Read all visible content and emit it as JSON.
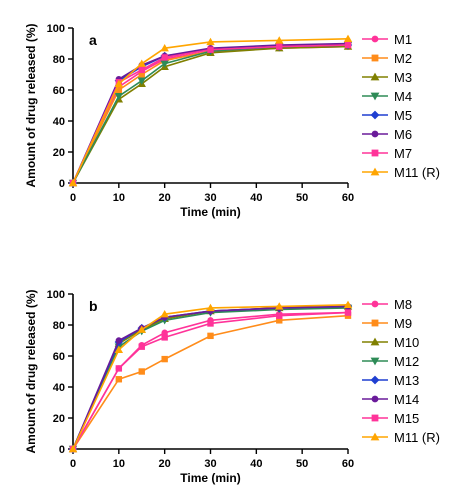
{
  "chart_data": [
    {
      "type": "line",
      "panel_label": "a",
      "xlabel": "Time (min)",
      "ylabel": "Amount of drug released (%)",
      "xlim": [
        0,
        60
      ],
      "ylim": [
        0,
        100
      ],
      "xticks": [
        0,
        10,
        20,
        30,
        40,
        50,
        60
      ],
      "yticks": [
        0,
        20,
        40,
        60,
        80,
        100
      ],
      "grid": false,
      "legend_position": "right",
      "x": [
        0,
        10,
        15,
        20,
        30,
        45,
        60
      ],
      "series": [
        {
          "name": "M1",
          "color": "#ff3399",
          "marker": "circle",
          "values": [
            0,
            62,
            72,
            80,
            85,
            87,
            88
          ]
        },
        {
          "name": "M2",
          "color": "#ff8c1a",
          "marker": "square",
          "values": [
            0,
            60,
            70,
            79,
            85,
            88,
            89
          ]
        },
        {
          "name": "M3",
          "color": "#808000",
          "marker": "triangle-up",
          "values": [
            0,
            54,
            64,
            75,
            84,
            87,
            88
          ]
        },
        {
          "name": "M4",
          "color": "#2e8b57",
          "marker": "triangle-down",
          "values": [
            0,
            56,
            66,
            77,
            85,
            88,
            89
          ]
        },
        {
          "name": "M5",
          "color": "#1f3fd1",
          "marker": "diamond",
          "values": [
            0,
            66,
            75,
            82,
            86,
            88,
            89
          ]
        },
        {
          "name": "M6",
          "color": "#6a1b9a",
          "marker": "circle",
          "values": [
            0,
            67,
            76,
            82,
            87,
            89,
            90
          ]
        },
        {
          "name": "M7",
          "color": "#ff3399",
          "marker": "square",
          "values": [
            0,
            65,
            73,
            81,
            86,
            88,
            89
          ]
        },
        {
          "name": "M11 (R)",
          "color": "#ffa500",
          "marker": "triangle-up",
          "values": [
            0,
            64,
            77,
            87,
            91,
            92,
            93
          ]
        }
      ]
    },
    {
      "type": "line",
      "panel_label": "b",
      "xlabel": "Time (min)",
      "ylabel": "Amount of drug released (%)",
      "xlim": [
        0,
        60
      ],
      "ylim": [
        0,
        100
      ],
      "xticks": [
        0,
        10,
        20,
        30,
        40,
        50,
        60
      ],
      "yticks": [
        0,
        20,
        40,
        60,
        80,
        100
      ],
      "grid": false,
      "legend_position": "right",
      "x": [
        0,
        10,
        15,
        20,
        30,
        45,
        60
      ],
      "series": [
        {
          "name": "M8",
          "color": "#ff3399",
          "marker": "circle",
          "values": [
            0,
            52,
            67,
            75,
            83,
            87,
            88
          ]
        },
        {
          "name": "M9",
          "color": "#ff8c1a",
          "marker": "square",
          "values": [
            0,
            45,
            50,
            58,
            73,
            83,
            86
          ]
        },
        {
          "name": "M10",
          "color": "#808000",
          "marker": "triangle-up",
          "values": [
            0,
            68,
            77,
            84,
            89,
            91,
            92
          ]
        },
        {
          "name": "M12",
          "color": "#2e8b57",
          "marker": "triangle-down",
          "values": [
            0,
            66,
            76,
            83,
            88,
            90,
            91
          ]
        },
        {
          "name": "M13",
          "color": "#1f3fd1",
          "marker": "diamond",
          "values": [
            0,
            69,
            78,
            85,
            89,
            91,
            92
          ]
        },
        {
          "name": "M14",
          "color": "#6a1b9a",
          "marker": "circle",
          "values": [
            0,
            70,
            78,
            85,
            89,
            91,
            92
          ]
        },
        {
          "name": "M15",
          "color": "#ff3399",
          "marker": "square",
          "values": [
            0,
            52,
            66,
            72,
            81,
            86,
            88
          ]
        },
        {
          "name": "M11 (R)",
          "color": "#ffa500",
          "marker": "triangle-up",
          "values": [
            0,
            64,
            77,
            87,
            91,
            92,
            93
          ]
        }
      ]
    }
  ]
}
